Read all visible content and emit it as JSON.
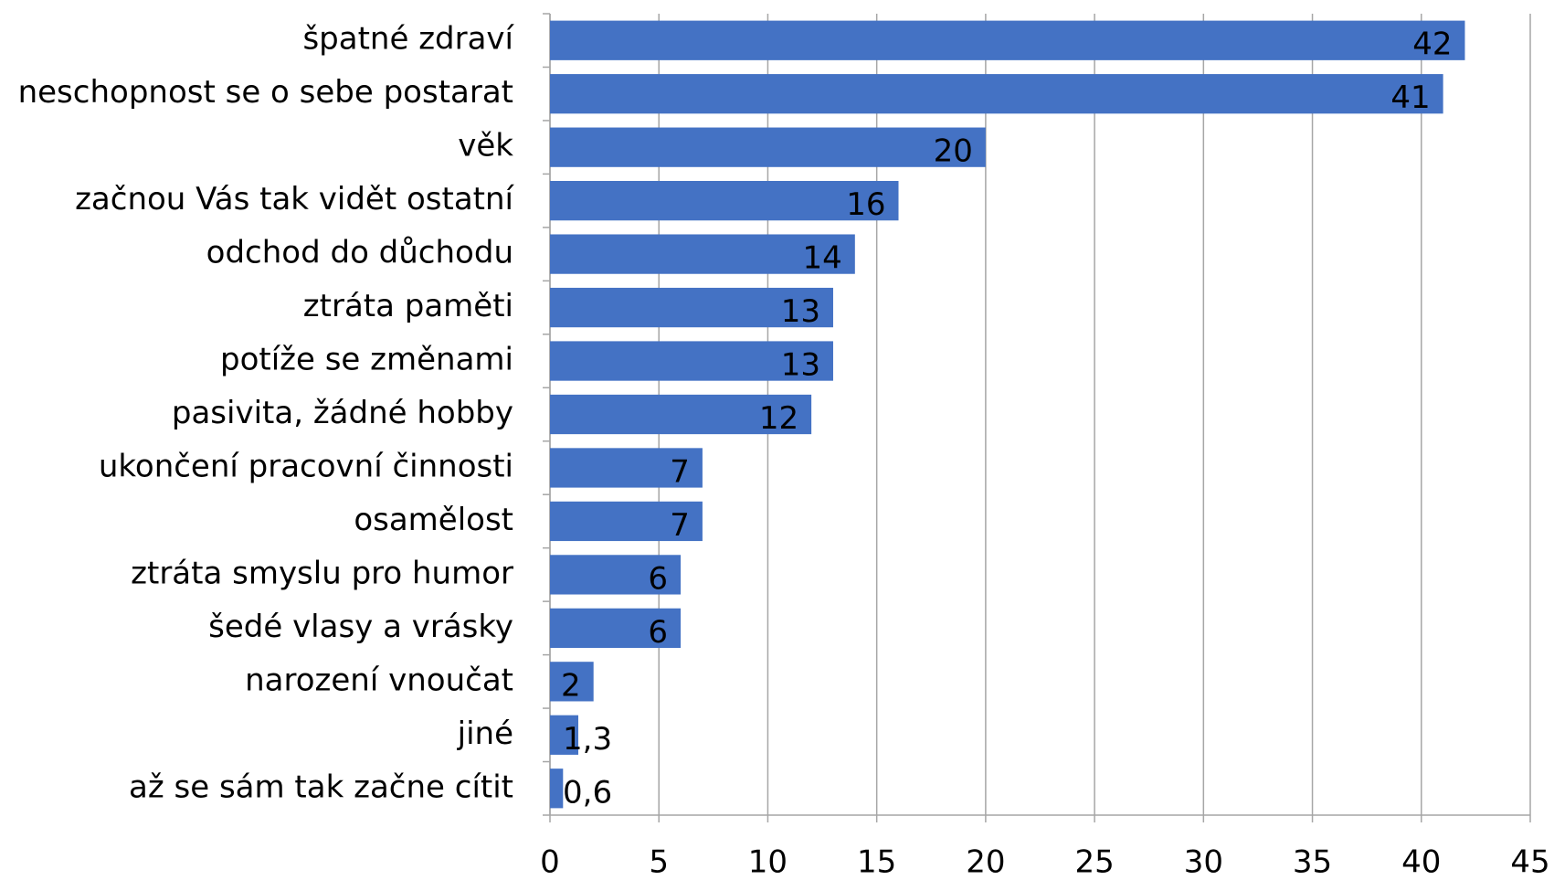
{
  "chart_data": {
    "type": "bar",
    "orientation": "horizontal",
    "categories": [
      "špatné zdraví",
      "neschopnost se o sebe postarat",
      "věk",
      "začnou Vás tak vidět ostatní",
      "odchod do důchodu",
      "ztráta paměti",
      "potíže se změnami",
      "pasivita, žádné hobby",
      "ukončení pracovní činnosti",
      "osamělost",
      "ztráta smyslu pro humor",
      "šedé vlasy a vrásky",
      "narození vnoučat",
      "jiné",
      "až se sám tak začne cítit"
    ],
    "values": [
      42,
      41,
      20,
      16,
      14,
      13,
      13,
      12,
      7,
      7,
      6,
      6,
      2,
      1.3,
      0.6
    ],
    "value_labels": [
      "42",
      "41",
      "20",
      "16",
      "14",
      "13",
      "13",
      "12",
      "7",
      "7",
      "6",
      "6",
      "2",
      "1,3",
      "0,6"
    ],
    "color": "#4472c4",
    "xlim": [
      0,
      45
    ],
    "xticks": [
      0,
      5,
      10,
      15,
      20,
      25,
      30,
      35,
      40,
      45
    ],
    "grid": true
  }
}
